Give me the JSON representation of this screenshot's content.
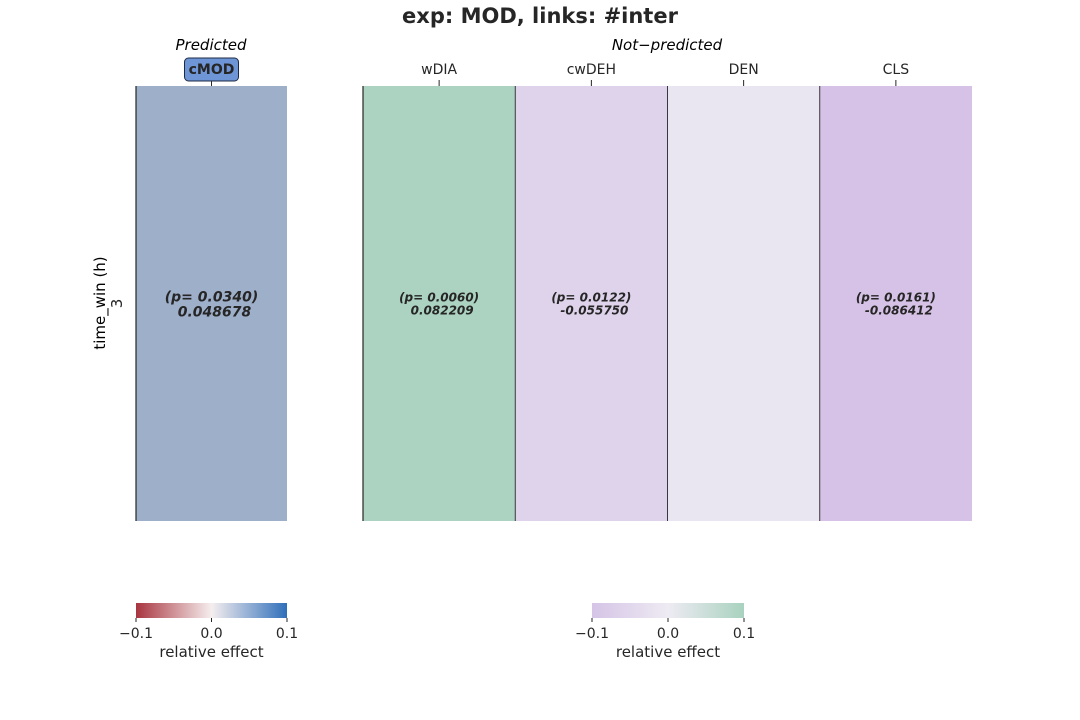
{
  "title": "exp: MOD, links: #inter",
  "chart_data": [
    {
      "type": "heatmap",
      "panel_title": "Predicted",
      "ylabel": "time_win (h)",
      "y_categories": [
        "3"
      ],
      "x_categories": [
        "cMOD"
      ],
      "highlighted_category": "cMOD",
      "cells": [
        {
          "x": "cMOD",
          "y": "3",
          "value": 0.048678,
          "p": "0.0340",
          "label_line1": "(p= 0.0340)",
          "label_line2": "0.048678",
          "color": "#9eafca"
        }
      ],
      "colorbar": {
        "label": "relative effect",
        "range": [
          -0.1,
          0.1
        ],
        "ticks": [
          "−0.1",
          "0.0",
          "0.1"
        ],
        "colors": [
          "#a8353f",
          "#f5eeee",
          "#2f6fba"
        ]
      }
    },
    {
      "type": "heatmap",
      "panel_title": "Not−predicted",
      "ylabel": "",
      "y_categories": [
        "3"
      ],
      "x_categories": [
        "wDIA",
        "cwDEH",
        "DEN",
        "CLS"
      ],
      "cells": [
        {
          "x": "wDIA",
          "y": "3",
          "value": 0.082209,
          "p": "0.0060",
          "label_line1": "(p= 0.0060)",
          "label_line2": "0.082209",
          "color": "#acd3c2"
        },
        {
          "x": "cwDEH",
          "y": "3",
          "value": -0.05575,
          "p": "0.0122",
          "label_line1": "(p= 0.0122)",
          "label_line2": "-0.055750",
          "color": "#dfd3eb"
        },
        {
          "x": "DEN",
          "y": "3",
          "value": null,
          "p": null,
          "label_line1": "",
          "label_line2": "",
          "color": "#e9e6f1"
        },
        {
          "x": "CLS",
          "y": "3",
          "value": -0.086412,
          "p": "0.0161",
          "label_line1": "(p= 0.0161)",
          "label_line2": "-0.086412",
          "color": "#d6c2e6"
        }
      ],
      "colorbar": {
        "label": "relative effect",
        "range": [
          -0.1,
          0.1
        ],
        "ticks": [
          "−0.1",
          "0.0",
          "0.1"
        ],
        "colors": [
          "#d5c4e6",
          "#eeebf3",
          "#a9d2bf"
        ]
      }
    }
  ]
}
